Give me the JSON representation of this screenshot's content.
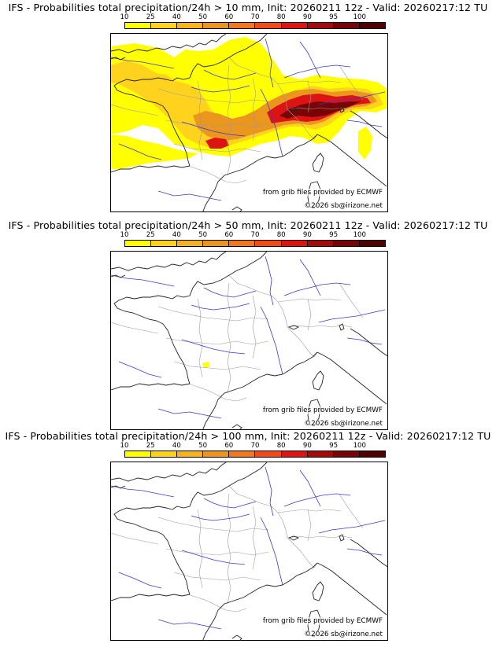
{
  "colorbar": {
    "ticks": [
      "10",
      "25",
      "40",
      "50",
      "60",
      "70",
      "80",
      "90",
      "95",
      "100"
    ],
    "colors": [
      "#ffff00",
      "#ffd21e",
      "#f5b41e",
      "#eb961e",
      "#f0781e",
      "#f04b19",
      "#dc1414",
      "#a50a0a",
      "#780505",
      "#500000"
    ]
  },
  "credit_source": "from grib files provided by ECMWF",
  "credit_copyright": "©2026 sb@irizone.net",
  "panels": [
    {
      "title": "IFS - Probabilities total precipitation/24h > 10 mm, Init: 20260211 12z - Valid: 20260217:12 TU",
      "level": "heavy"
    },
    {
      "title": "IFS - Probabilities total precipitation/24h > 50 mm, Init: 20260211 12z - Valid: 20260217:12 TU",
      "level": "light"
    },
    {
      "title": "IFS - Probabilities total precipitation/24h > 100 mm, Init: 20260211 12z - Valid: 20260217:12 TU",
      "level": "none"
    }
  ],
  "map_colors": {
    "coast": "#222222",
    "rivers": "#3a3acc",
    "borders": "#9a9a9a"
  }
}
